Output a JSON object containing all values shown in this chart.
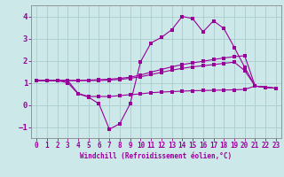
{
  "bg_color": "#cce8e8",
  "grid_color": "#aacccc",
  "line_color": "#990099",
  "xlabel": "Windchill (Refroidissement éolien,°C)",
  "xlim": [
    -0.5,
    23.5
  ],
  "ylim": [
    -1.5,
    4.5
  ],
  "yticks": [
    -1,
    0,
    1,
    2,
    3,
    4
  ],
  "xticks": [
    0,
    1,
    2,
    3,
    4,
    5,
    6,
    7,
    8,
    9,
    10,
    11,
    12,
    13,
    14,
    15,
    16,
    17,
    18,
    19,
    20,
    21,
    22,
    23
  ],
  "line1_x": [
    0,
    1,
    2,
    3,
    4,
    5,
    6,
    7,
    8,
    9,
    10,
    11,
    12,
    13,
    14,
    15,
    16,
    17,
    18,
    19,
    20,
    21,
    22,
    23
  ],
  "line1_y": [
    1.1,
    1.1,
    1.1,
    1.0,
    0.5,
    0.35,
    0.05,
    -1.1,
    -0.85,
    0.05,
    1.95,
    2.8,
    3.05,
    3.4,
    4.0,
    3.9,
    3.3,
    3.8,
    3.45,
    2.6,
    1.7,
    0.85,
    0.8,
    0.75
  ],
  "line2_x": [
    0,
    1,
    2,
    3,
    4,
    5,
    6,
    7,
    8,
    9,
    10,
    11,
    12,
    13,
    14,
    15,
    16,
    17,
    18,
    19,
    20,
    21,
    22,
    23
  ],
  "line2_y": [
    1.1,
    1.1,
    1.1,
    1.1,
    1.1,
    1.12,
    1.14,
    1.16,
    1.2,
    1.25,
    1.35,
    1.48,
    1.6,
    1.72,
    1.82,
    1.9,
    1.97,
    2.05,
    2.12,
    2.18,
    2.22,
    0.85,
    0.8,
    0.75
  ],
  "line3_x": [
    0,
    1,
    2,
    3,
    4,
    5,
    6,
    7,
    8,
    9,
    10,
    11,
    12,
    13,
    14,
    15,
    16,
    17,
    18,
    19,
    20,
    21,
    22,
    23
  ],
  "line3_y": [
    1.1,
    1.1,
    1.1,
    1.1,
    1.1,
    1.1,
    1.1,
    1.12,
    1.15,
    1.2,
    1.27,
    1.37,
    1.47,
    1.57,
    1.65,
    1.72,
    1.77,
    1.82,
    1.88,
    1.93,
    1.55,
    0.85,
    0.8,
    0.75
  ],
  "line4_x": [
    0,
    1,
    2,
    3,
    4,
    5,
    6,
    7,
    8,
    9,
    10,
    11,
    12,
    13,
    14,
    15,
    16,
    17,
    18,
    19,
    20,
    21,
    22,
    23
  ],
  "line4_y": [
    1.1,
    1.1,
    1.1,
    1.1,
    0.52,
    0.38,
    0.38,
    0.38,
    0.42,
    0.46,
    0.5,
    0.55,
    0.58,
    0.6,
    0.62,
    0.64,
    0.65,
    0.66,
    0.67,
    0.68,
    0.7,
    0.85,
    0.8,
    0.75
  ],
  "linewidth": 0.8,
  "markersize": 2.5
}
